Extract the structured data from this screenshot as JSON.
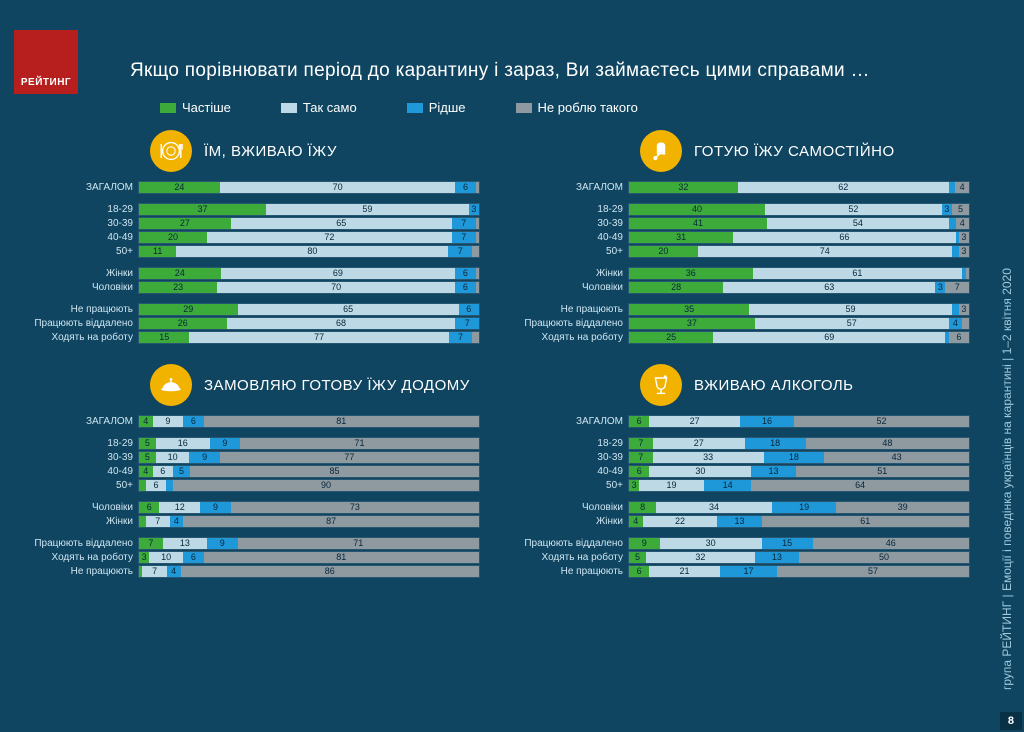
{
  "logo_text": "РЕЙТИНГ",
  "title": "Якщо порівнювати  період до карантину і зараз, Ви займаєтесь цими справами  …",
  "sidebar": "група РЕЙТИНГ  |  Емоції і поведінка українців на карантині  |  1–2 квітня 2020",
  "page_number": "8",
  "colors": {
    "chastishe": "#3cab3a",
    "taksamo": "#bdd9e6",
    "ridshe": "#1e98d8",
    "nero": "#8e99a0",
    "bg": "#0f4560",
    "icon_bg": "#f2b200"
  },
  "legend": [
    {
      "label": "Частіше",
      "color": "#3cab3a"
    },
    {
      "label": "Так само",
      "color": "#bdd9e6"
    },
    {
      "label": "Рідше",
      "color": "#1e98d8"
    },
    {
      "label": "Не роблю такого",
      "color": "#8e99a0"
    }
  ],
  "charts": [
    {
      "title": "ЇМ, ВЖИВАЮ ЇЖУ",
      "icon": "plate",
      "groups": [
        [
          {
            "label": "ЗАГАЛОМ",
            "v": [
              24,
              70,
              6,
              1
            ]
          }
        ],
        [
          {
            "label": "18-29",
            "v": [
              37,
              59,
              3,
              0
            ]
          },
          {
            "label": "30-39",
            "v": [
              27,
              65,
              7,
              1
            ]
          },
          {
            "label": "40-49",
            "v": [
              20,
              72,
              7,
              1
            ]
          },
          {
            "label": "50+",
            "v": [
              11,
              80,
              7,
              2
            ]
          }
        ],
        [
          {
            "label": "Жінки",
            "v": [
              24,
              69,
              6,
              1
            ]
          },
          {
            "label": "Чоловіки",
            "v": [
              23,
              70,
              6,
              1
            ]
          }
        ],
        [
          {
            "label": "Не працюють",
            "v": [
              29,
              65,
              6,
              0
            ]
          },
          {
            "label": "Працюють віддалено",
            "v": [
              26,
              68,
              7,
              0
            ]
          },
          {
            "label": "Ходять на роботу",
            "v": [
              15,
              77,
              7,
              2
            ]
          }
        ]
      ]
    },
    {
      "title": "ГОТУЮ ЇЖУ САМОСТІЙНО",
      "icon": "chef",
      "groups": [
        [
          {
            "label": "ЗАГАЛОМ",
            "v": [
              32,
              62,
              2,
              4
            ]
          }
        ],
        [
          {
            "label": "18-29",
            "v": [
              40,
              52,
              3,
              5
            ]
          },
          {
            "label": "30-39",
            "v": [
              41,
              54,
              2,
              4
            ]
          },
          {
            "label": "40-49",
            "v": [
              31,
              66,
              1,
              3
            ]
          },
          {
            "label": "50+",
            "v": [
              20,
              74,
              2,
              3
            ]
          }
        ],
        [
          {
            "label": "Жінки",
            "v": [
              36,
              61,
              1,
              1
            ]
          },
          {
            "label": "Чоловіки",
            "v": [
              28,
              63,
              3,
              7
            ]
          }
        ],
        [
          {
            "label": "Не працюють",
            "v": [
              35,
              59,
              2,
              3
            ]
          },
          {
            "label": "Працюють віддалено",
            "v": [
              37,
              57,
              4,
              2
            ]
          },
          {
            "label": "Ходять на роботу",
            "v": [
              25,
              69,
              1,
              6
            ]
          }
        ]
      ]
    },
    {
      "title": "ЗАМОВЛЯЮ ГОТОВУ ЇЖУ ДОДОМУ",
      "icon": "delivery",
      "groups": [
        [
          {
            "label": "ЗАГАЛОМ",
            "v": [
              4,
              9,
              6,
              81
            ]
          }
        ],
        [
          {
            "label": "18-29",
            "v": [
              5,
              16,
              9,
              71
            ]
          },
          {
            "label": "30-39",
            "v": [
              5,
              10,
              9,
              77
            ]
          },
          {
            "label": "40-49",
            "v": [
              4,
              6,
              5,
              85
            ]
          },
          {
            "label": "50+",
            "v": [
              2,
              6,
              2,
              90
            ]
          }
        ],
        [
          {
            "label": "Чоловіки",
            "v": [
              6,
              12,
              9,
              73
            ]
          },
          {
            "label": "Жінки",
            "v": [
              2,
              7,
              4,
              87
            ]
          }
        ],
        [
          {
            "label": "Працюють віддалено",
            "v": [
              7,
              13,
              9,
              71
            ]
          },
          {
            "label": "Ходять на роботу",
            "v": [
              3,
              10,
              6,
              81
            ]
          },
          {
            "label": "Не працюють",
            "v": [
              1,
              7,
              4,
              86
            ]
          }
        ]
      ]
    },
    {
      "title": "ВЖИВАЮ АЛКОГОЛЬ",
      "icon": "glass",
      "groups": [
        [
          {
            "label": "ЗАГАЛОМ",
            "v": [
              6,
              27,
              16,
              52
            ]
          }
        ],
        [
          {
            "label": "18-29",
            "v": [
              7,
              27,
              18,
              48
            ]
          },
          {
            "label": "30-39",
            "v": [
              7,
              33,
              18,
              43
            ]
          },
          {
            "label": "40-49",
            "v": [
              6,
              30,
              13,
              51
            ]
          },
          {
            "label": "50+",
            "v": [
              3,
              19,
              14,
              64
            ]
          }
        ],
        [
          {
            "label": "Чоловіки",
            "v": [
              8,
              34,
              19,
              39
            ]
          },
          {
            "label": "Жінки",
            "v": [
              4,
              22,
              13,
              61
            ]
          }
        ],
        [
          {
            "label": "Працюють віддалено",
            "v": [
              9,
              30,
              15,
              46
            ]
          },
          {
            "label": "Ходять на роботу",
            "v": [
              5,
              32,
              13,
              50
            ]
          },
          {
            "label": "Не працюють",
            "v": [
              6,
              21,
              17,
              57
            ]
          }
        ]
      ]
    }
  ]
}
